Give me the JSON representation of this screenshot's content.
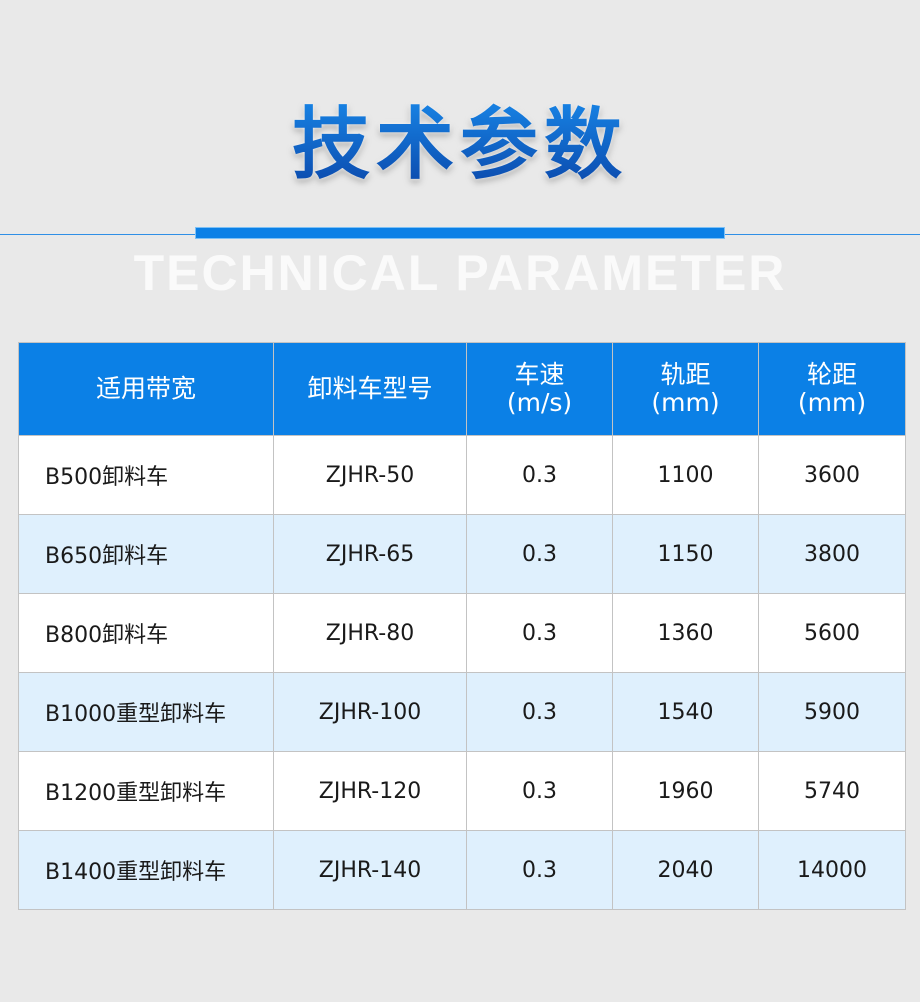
{
  "title": "技术参数",
  "subtitle": "TECHNICAL PARAMETER",
  "table": {
    "headers": [
      {
        "line1": "适用带宽",
        "line2": ""
      },
      {
        "line1": "卸料车型号",
        "line2": ""
      },
      {
        "line1": "车速",
        "line2": "(m/s)"
      },
      {
        "line1": "轨距",
        "line2": "(mm)"
      },
      {
        "line1": "轮距",
        "line2": "(mm)"
      }
    ],
    "rows": [
      [
        "B500卸料车",
        "ZJHR-50",
        "0.3",
        "1100",
        "3600"
      ],
      [
        "B650卸料车",
        "ZJHR-65",
        "0.3",
        "1150",
        "3800"
      ],
      [
        "B800卸料车",
        "ZJHR-80",
        "0.3",
        "1360",
        "5600"
      ],
      [
        "B1000重型卸料车",
        "ZJHR-100",
        "0.3",
        "1540",
        "5900"
      ],
      [
        "B1200重型卸料车",
        "ZJHR-120",
        "0.3",
        "1960",
        "5740"
      ],
      [
        "B1400重型卸料车",
        "ZJHR-140",
        "0.3",
        "2040",
        "14000"
      ]
    ]
  },
  "colors": {
    "accent": "#0b80e6",
    "row_alt": "#dff0fd"
  }
}
